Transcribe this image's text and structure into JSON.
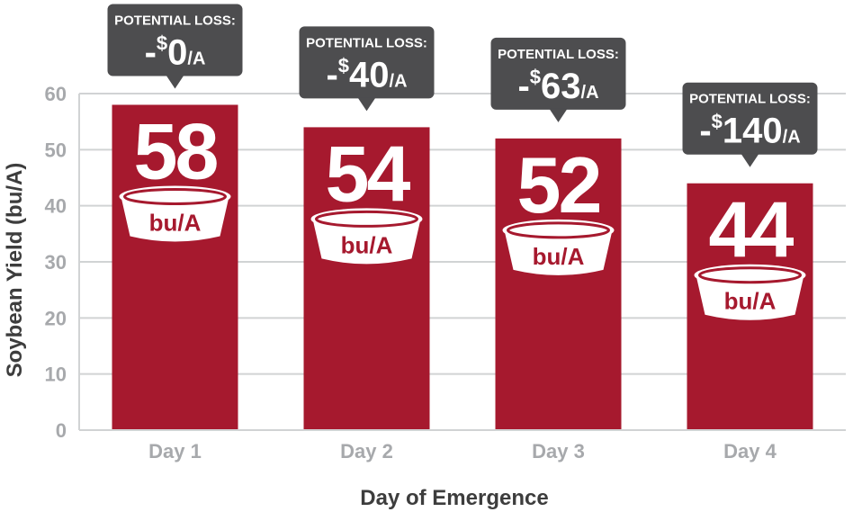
{
  "chart_data": {
    "type": "bar",
    "categories": [
      "Day 1",
      "Day 2",
      "Day 3",
      "Day 4"
    ],
    "values": [
      58,
      54,
      52,
      44
    ],
    "value_labels": [
      "58",
      "54",
      "52",
      "44"
    ],
    "unit_label": "bu/A",
    "callouts": [
      {
        "heading": "POTENTIAL LOSS:",
        "prefix": "-",
        "currency": "$",
        "amount": "0",
        "suffix": "/A"
      },
      {
        "heading": "POTENTIAL LOSS:",
        "prefix": "-",
        "currency": "$",
        "amount": "40",
        "suffix": "/A"
      },
      {
        "heading": "POTENTIAL LOSS:",
        "prefix": "-",
        "currency": "$",
        "amount": "63",
        "suffix": "/A"
      },
      {
        "heading": "POTENTIAL LOSS:",
        "prefix": "-",
        "currency": "$",
        "amount": "140",
        "suffix": "/A"
      }
    ],
    "xlabel": "Day of Emergence",
    "ylabel": "Soybean Yield (bu/A)",
    "ylim": [
      0,
      60
    ],
    "yticks": [
      0,
      10,
      20,
      30,
      40,
      50,
      60
    ],
    "grid": true,
    "colors": {
      "bar": "#a6192e",
      "callout": "#4d4d4f",
      "grid": "#d1d3d4",
      "tick_text": "#a7a9ac",
      "axis_title": "#3d3d3d"
    }
  }
}
